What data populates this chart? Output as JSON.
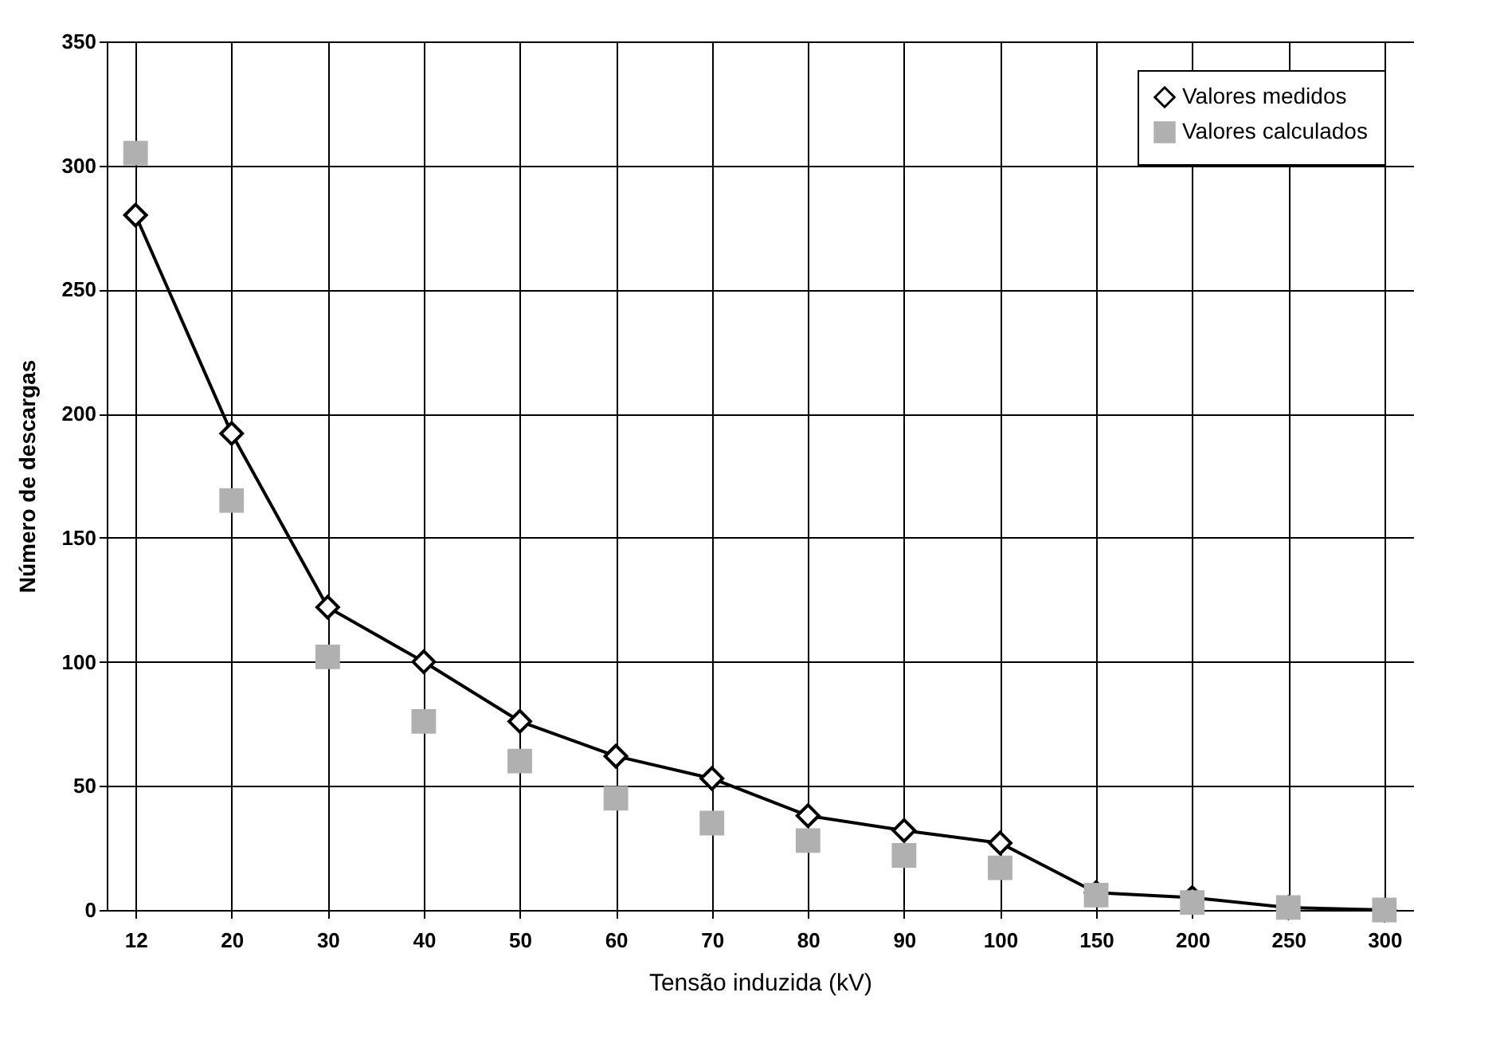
{
  "chart_data": {
    "type": "line",
    "xlabel": "Tensão induzida (kV)",
    "ylabel": "Número de descargas",
    "categories": [
      "12",
      "20",
      "30",
      "40",
      "50",
      "60",
      "70",
      "80",
      "90",
      "100",
      "150",
      "200",
      "250",
      "300"
    ],
    "series": [
      {
        "name": "Valores medidos",
        "marker": "diamond",
        "color": "#000000",
        "values": [
          280,
          192,
          122,
          100,
          76,
          62,
          53,
          38,
          32,
          27,
          7,
          5,
          1,
          0
        ]
      },
      {
        "name": "Valores calculados",
        "type": "scatter",
        "marker": "square",
        "color": "#b0b0b0",
        "values": [
          305,
          165,
          102,
          76,
          60,
          45,
          35,
          28,
          22,
          17,
          6,
          3,
          1,
          0
        ]
      }
    ],
    "ylim": [
      0,
      350
    ],
    "yticks": [
      0,
      50,
      100,
      150,
      200,
      250,
      300,
      350
    ],
    "grid": true,
    "legend": "top right",
    "line_style": "solid"
  }
}
